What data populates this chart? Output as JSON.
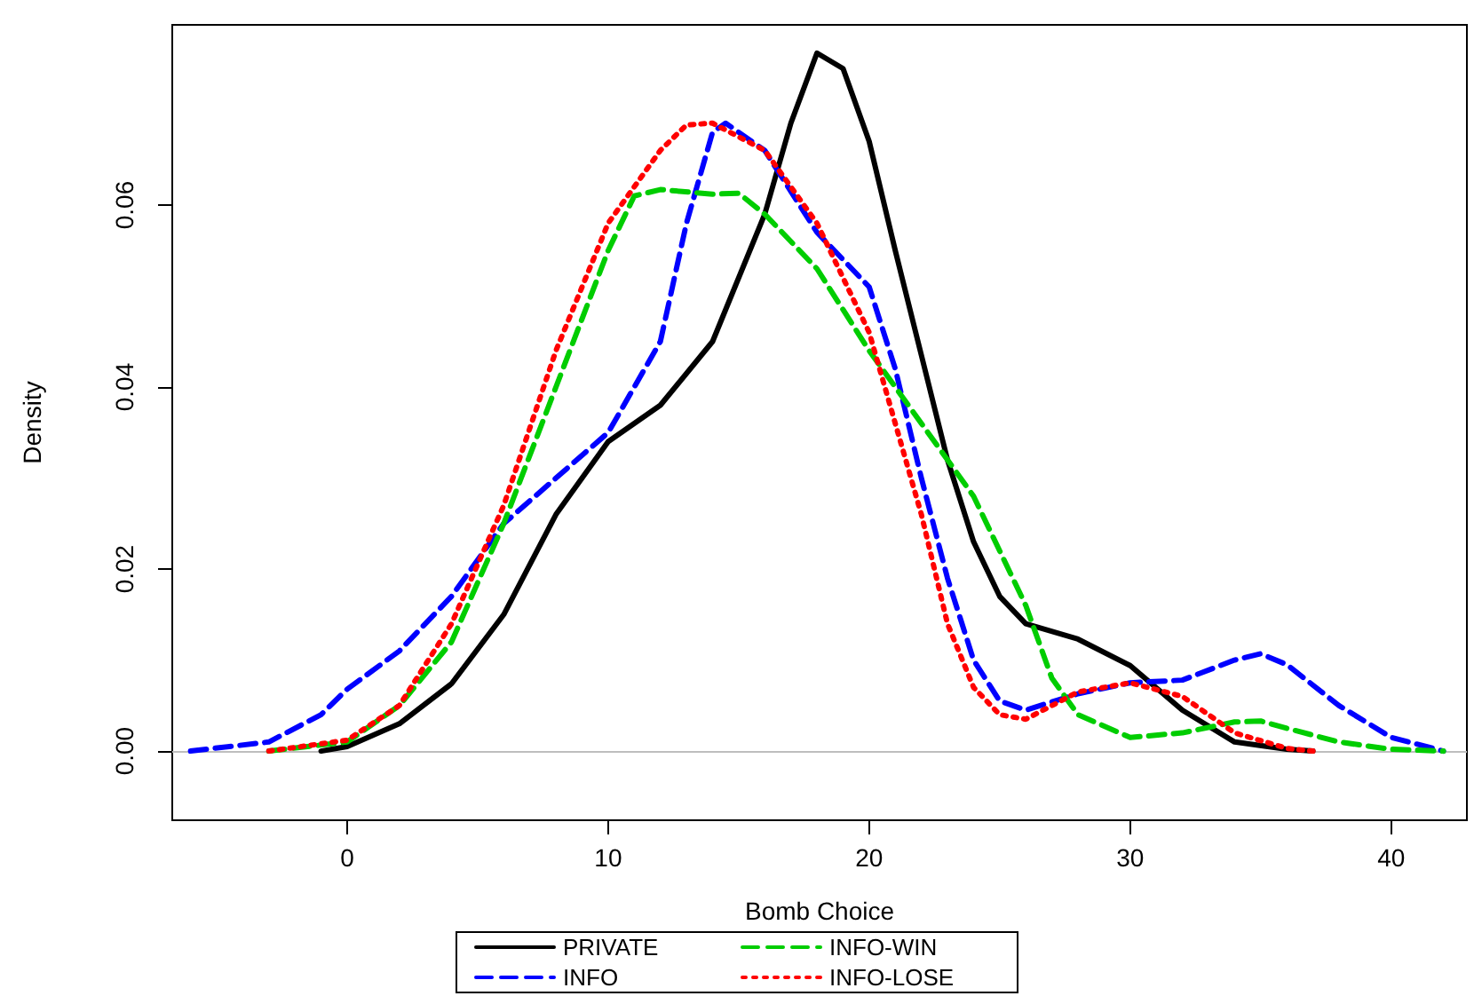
{
  "chart_data": {
    "type": "line",
    "xlabel": "Bomb Choice",
    "ylabel": "Density",
    "xlim": [
      -6.7,
      42.9
    ],
    "ylim": [
      -0.0076,
      0.0798
    ],
    "xticks": [
      0,
      10,
      20,
      30,
      40
    ],
    "yticks": [
      {
        "value": 0,
        "label": "0.00"
      },
      {
        "value": 0.02,
        "label": "0.02"
      },
      {
        "value": 0.04,
        "label": "0.04"
      },
      {
        "value": 0.06,
        "label": "0.06"
      }
    ],
    "grid": false,
    "legend": "bottom",
    "marker": "none",
    "ref_lines": [
      {
        "axis": "y",
        "value": 0,
        "color": "#bebebe"
      }
    ],
    "series": [
      {
        "name": "PRIVATE",
        "color": "#000000",
        "line_style": "solid",
        "x": [
          -1,
          0,
          2,
          4,
          6,
          8,
          10,
          12,
          14,
          16,
          17,
          18,
          19,
          20,
          21,
          22,
          23,
          24,
          25,
          26,
          28,
          30,
          32,
          34,
          36,
          37
        ],
        "values": [
          0,
          0.0005,
          0.003,
          0.0074,
          0.015,
          0.026,
          0.034,
          0.038,
          0.045,
          0.059,
          0.069,
          0.0767,
          0.075,
          0.067,
          0.055,
          0.0435,
          0.032,
          0.023,
          0.017,
          0.014,
          0.0123,
          0.0094,
          0.0045,
          0.001,
          0.0002,
          0
        ]
      },
      {
        "name": "INFO",
        "color": "#0000ff",
        "line_style": "dashed",
        "x": [
          -6,
          -3,
          -1,
          0,
          2,
          4,
          6,
          8,
          10,
          12,
          13,
          14,
          14.5,
          16,
          18,
          20,
          21,
          22,
          23,
          24,
          25,
          26,
          28,
          30,
          32,
          34,
          35,
          36,
          38,
          40,
          42
        ],
        "values": [
          0,
          0.001,
          0.004,
          0.0068,
          0.011,
          0.017,
          0.025,
          0.03,
          0.035,
          0.045,
          0.058,
          0.068,
          0.069,
          0.066,
          0.057,
          0.051,
          0.042,
          0.03,
          0.019,
          0.01,
          0.0055,
          0.0045,
          0.0063,
          0.0075,
          0.0078,
          0.01,
          0.0107,
          0.0095,
          0.005,
          0.0015,
          0
        ]
      },
      {
        "name": "INFO-WIN",
        "color": "#00cd00",
        "line_style": "dashed",
        "x": [
          -3,
          0,
          2,
          4,
          6,
          8,
          10,
          11,
          12,
          14,
          15,
          16,
          18,
          20,
          22,
          24,
          26,
          27,
          28,
          30,
          32,
          34,
          35,
          36,
          38,
          40,
          42
        ],
        "values": [
          0,
          0.001,
          0.005,
          0.012,
          0.025,
          0.04,
          0.055,
          0.061,
          0.0617,
          0.0612,
          0.0613,
          0.059,
          0.053,
          0.044,
          0.036,
          0.028,
          0.016,
          0.008,
          0.004,
          0.0015,
          0.002,
          0.0032,
          0.0033,
          0.0025,
          0.001,
          0.0002,
          0
        ]
      },
      {
        "name": "INFO-LOSE",
        "color": "#ff0000",
        "line_style": "dotted",
        "x": [
          -3,
          0,
          2,
          4,
          6,
          8,
          10,
          12,
          13,
          14,
          16,
          18,
          20,
          22,
          23,
          24,
          25,
          26,
          28,
          30,
          32,
          34,
          36,
          37
        ],
        "values": [
          0,
          0.0012,
          0.005,
          0.014,
          0.027,
          0.044,
          0.058,
          0.066,
          0.0688,
          0.069,
          0.066,
          0.058,
          0.046,
          0.026,
          0.014,
          0.007,
          0.004,
          0.0035,
          0.0065,
          0.0075,
          0.006,
          0.002,
          0.0003,
          0
        ]
      }
    ]
  }
}
